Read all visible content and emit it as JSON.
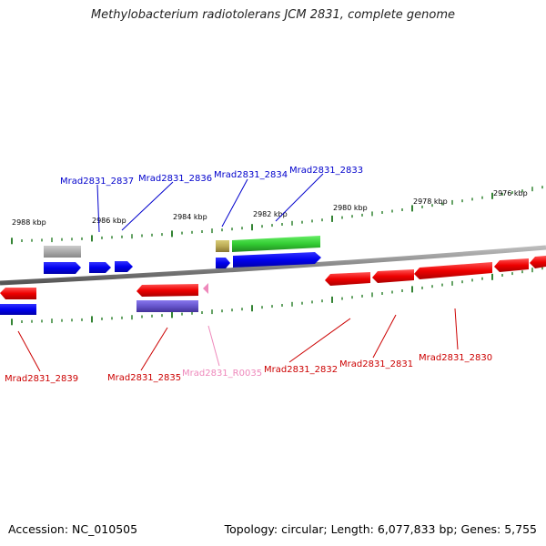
{
  "title": "Methylobacterium radiotolerans JCM 2831, complete genome",
  "footer": {
    "accession": "Accession: NC_010505",
    "summary": "Topology: circular; Length: 6,077,833 bp; Genes: 5,755"
  },
  "scale_labels": [
    "2988 kbp",
    "2986 kbp",
    "2984 kbp",
    "2982 kbp",
    "2980 kbp",
    "2978 kbp",
    "2976 kbp"
  ],
  "genes": [
    {
      "name": "Mrad2831_2837",
      "strand": "+",
      "color": "#0000cc"
    },
    {
      "name": "Mrad2831_2836",
      "strand": "+",
      "color": "#0000cc"
    },
    {
      "name": "Mrad2831_2834",
      "strand": "+",
      "color": "#0000cc"
    },
    {
      "name": "Mrad2831_2833",
      "strand": "+",
      "color": "#0000cc"
    },
    {
      "name": "Mrad2831_2839",
      "strand": "-",
      "color": "#cc0000"
    },
    {
      "name": "Mrad2831_2835",
      "strand": "-",
      "color": "#cc0000"
    },
    {
      "name": "Mrad2831_R0035",
      "strand": "-",
      "color": "#ee88bb"
    },
    {
      "name": "Mrad2831_2832",
      "strand": "-",
      "color": "#cc0000"
    },
    {
      "name": "Mrad2831_2831",
      "strand": "-",
      "color": "#cc0000"
    },
    {
      "name": "Mrad2831_2830",
      "strand": "-",
      "color": "#cc0000"
    }
  ],
  "colors": {
    "forward_cds": "#0000ff",
    "reverse_cds": "#ff0000",
    "rna": "#ee88bb",
    "cog_grey": "#aaaaaa",
    "cog_khaki": "#bbaa55",
    "cog_green": "#33cc33",
    "cog_purple": "#6655cc",
    "scale_ticks": "#006600",
    "backbone": "#888888"
  }
}
